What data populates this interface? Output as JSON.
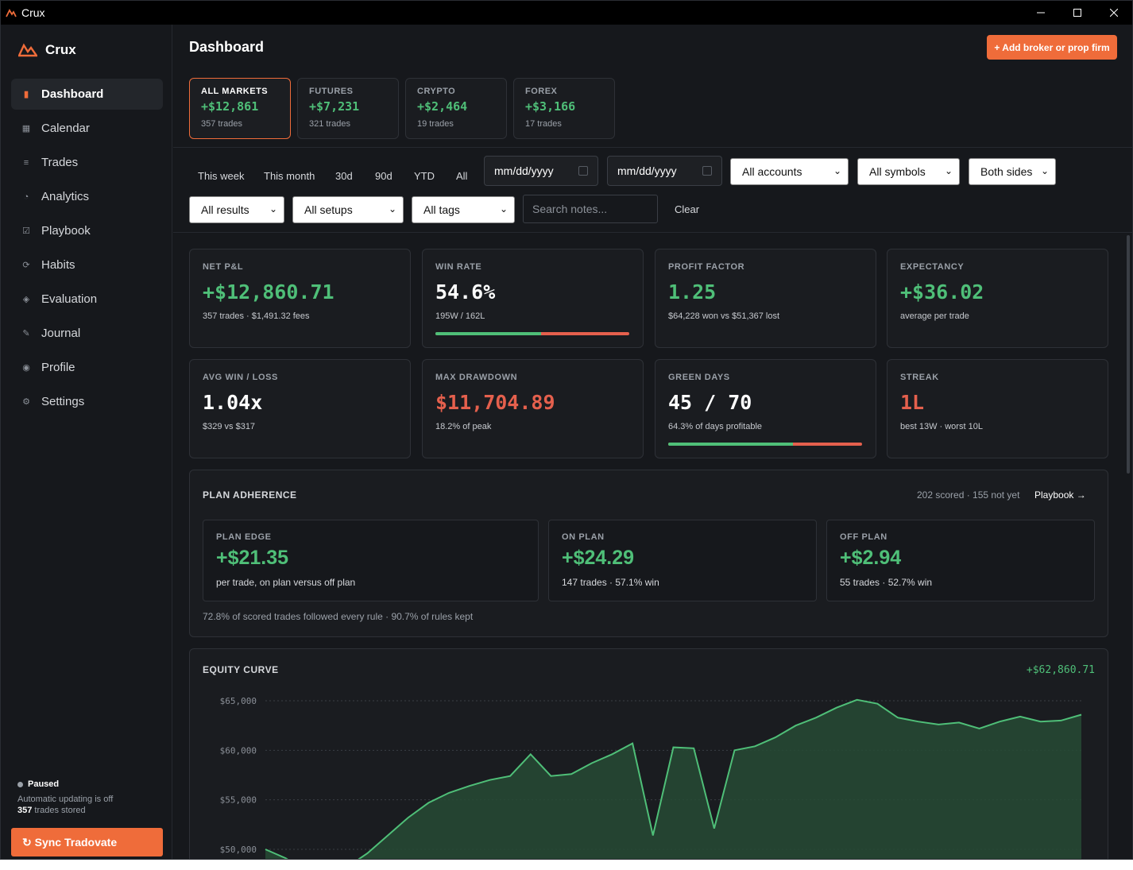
{
  "window": {
    "title": "Crux"
  },
  "sidebar": {
    "brand": "Crux",
    "items": [
      {
        "label": "Dashboard",
        "icon": "panel-icon",
        "glyph": "▮",
        "active": true
      },
      {
        "label": "Calendar",
        "icon": "calendar-grid-icon",
        "glyph": "▦",
        "active": false
      },
      {
        "label": "Trades",
        "icon": "list-icon",
        "glyph": "≡",
        "active": false
      },
      {
        "label": "Analytics",
        "icon": "pie-icon",
        "glyph": "◔",
        "active": false
      },
      {
        "label": "Playbook",
        "icon": "checkbox-icon",
        "glyph": "☑",
        "active": false
      },
      {
        "label": "Habits",
        "icon": "refresh-icon",
        "glyph": "⟳",
        "active": false
      },
      {
        "label": "Evaluation",
        "icon": "diamond-icon",
        "glyph": "◈",
        "active": false
      },
      {
        "label": "Journal",
        "icon": "pen-icon",
        "glyph": "✎",
        "active": false
      },
      {
        "label": "Profile",
        "icon": "profile-icon",
        "glyph": "◉",
        "active": false
      },
      {
        "label": "Settings",
        "icon": "gear-icon",
        "glyph": "⚙",
        "active": false
      }
    ],
    "status": {
      "state": "Paused",
      "note": "Automatic updating is off",
      "trades_count": "357",
      "trades_suffix": " trades stored"
    },
    "sync_button": "↻ Sync Tradovate"
  },
  "header": {
    "title": "Dashboard",
    "add_button": "+ Add broker or prop firm"
  },
  "markets": [
    {
      "label": "ALL MARKETS",
      "value": "+$12,861",
      "count": "357 trades",
      "active": true
    },
    {
      "label": "FUTURES",
      "value": "+$7,231",
      "count": "321 trades",
      "active": false
    },
    {
      "label": "CRYPTO",
      "value": "+$2,464",
      "count": "19 trades",
      "active": false
    },
    {
      "label": "FOREX",
      "value": "+$3,166",
      "count": "17 trades",
      "active": false
    }
  ],
  "filters": {
    "quick": [
      "This week",
      "This month",
      "30d",
      "90d",
      "YTD",
      "All"
    ],
    "date_from_placeholder": "mm/dd/yyyy",
    "date_to_placeholder": "mm/dd/yyyy",
    "accounts": "All accounts",
    "symbols": "All symbols",
    "sides": "Both sides",
    "results": "All results",
    "setups": "All setups",
    "tags": "All tags",
    "search_placeholder": "Search notes...",
    "clear": "Clear"
  },
  "stats": {
    "net_pnl": {
      "label": "NET P&L",
      "value": "+$12,860.71",
      "sub": "357 trades · $1,491.32 fees"
    },
    "win_rate": {
      "label": "WIN RATE",
      "value": "54.6%",
      "sub": "195W / 162L",
      "win_fraction": 0.546
    },
    "profit_factor": {
      "label": "PROFIT FACTOR",
      "value": "1.25",
      "sub": "$64,228 won vs $51,367 lost"
    },
    "expectancy": {
      "label": "EXPECTANCY",
      "value": "+$36.02",
      "sub": "average per trade"
    },
    "avg_win_loss": {
      "label": "AVG WIN / LOSS",
      "value": "1.04x",
      "sub": "$329 vs $317"
    },
    "max_drawdown": {
      "label": "MAX DRAWDOWN",
      "value": "$11,704.89",
      "sub": "18.2% of peak"
    },
    "green_days": {
      "label": "GREEN DAYS",
      "value": "45 / 70",
      "sub": "64.3% of days profitable",
      "fraction": 0.643
    },
    "streak": {
      "label": "STREAK",
      "value": "1L",
      "sub": "best 13W · worst 10L"
    }
  },
  "plan": {
    "title": "PLAN ADHERENCE",
    "meta": "202 scored · 155 not yet",
    "link": "Playbook →",
    "edge": {
      "label": "PLAN EDGE",
      "value": "+$21.35",
      "sub": "per trade, on plan versus off plan"
    },
    "on": {
      "label": "ON PLAN",
      "value": "+$24.29",
      "sub": "147 trades · 57.1% win"
    },
    "off": {
      "label": "OFF PLAN",
      "value": "+$2.94",
      "sub": "55 trades · 52.7% win"
    },
    "footer": "72.8% of scored trades followed every rule · 90.7% of rules kept"
  },
  "chart_data": {
    "type": "area",
    "title": "EQUITY CURVE",
    "total": "+$62,860.71",
    "ytick_labels": [
      "$65,000",
      "$60,000",
      "$55,000",
      "$50,000"
    ],
    "yticks": [
      65000,
      60000,
      55000,
      50000
    ],
    "ylim": [
      50000,
      65000
    ],
    "grid": true,
    "series": [
      {
        "values": [
          50000,
          49100,
          47800,
          47300,
          48200,
          49600,
          51400,
          53200,
          54700,
          55700,
          56400,
          57000,
          57400,
          59600,
          57400,
          57600,
          58700,
          59600,
          60700,
          51400,
          60300,
          60200,
          52100,
          60000,
          60400,
          61300,
          62500,
          63300,
          64300,
          65100,
          64700,
          63300,
          62900,
          62600,
          62800,
          62200,
          62900,
          63400,
          62900,
          63000,
          63600
        ]
      }
    ],
    "colors": {
      "line": "#4fbf78",
      "fill": "#274a35"
    }
  }
}
